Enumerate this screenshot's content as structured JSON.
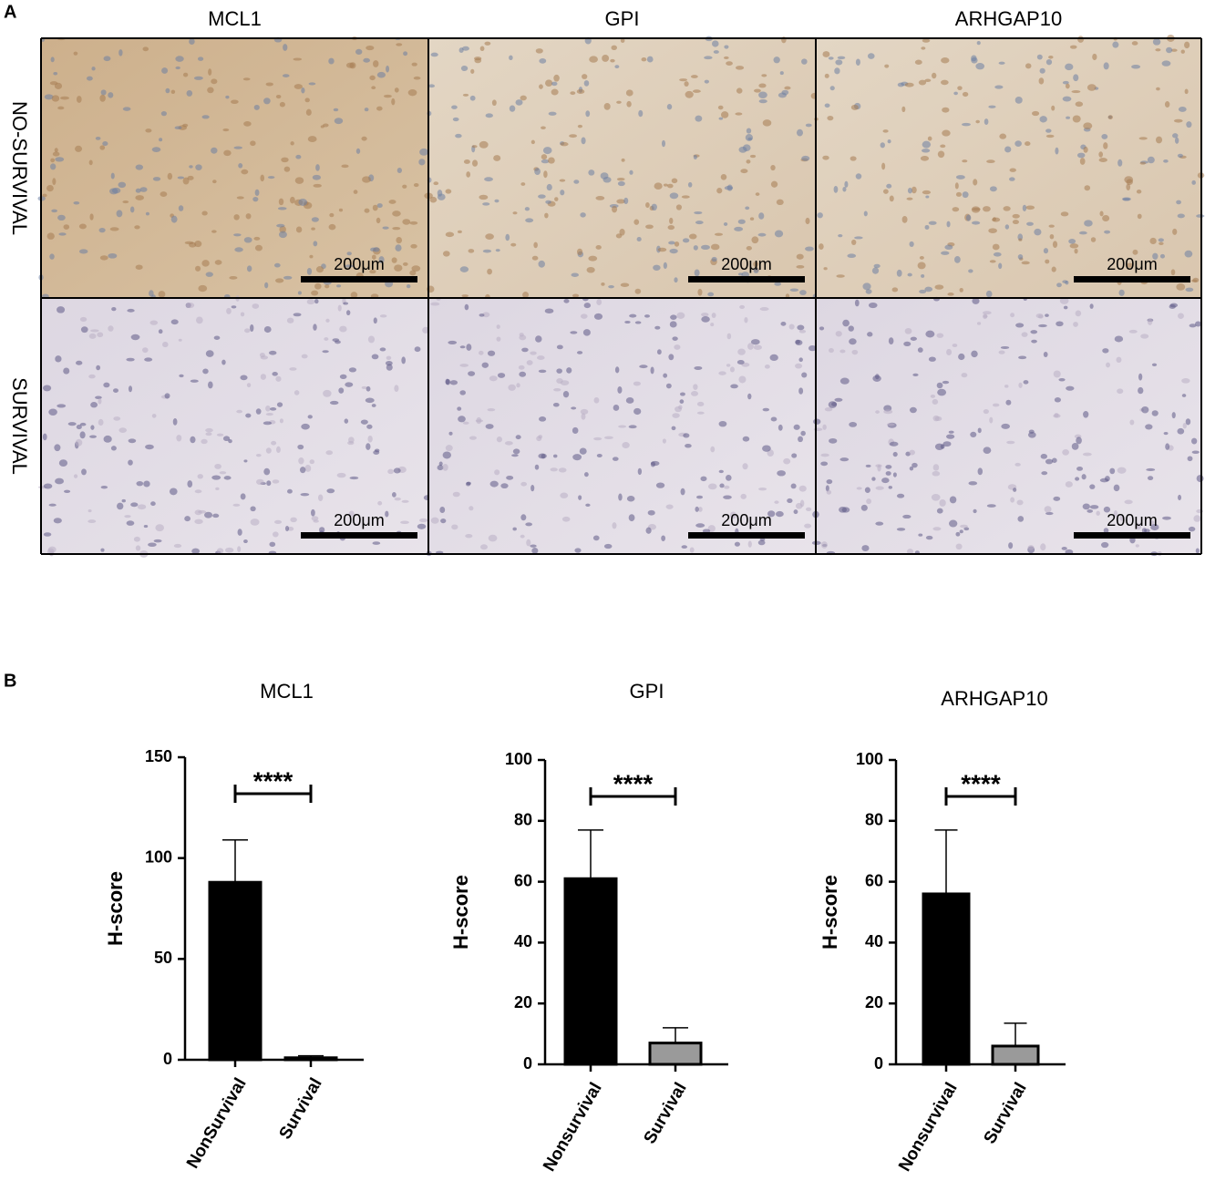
{
  "panel_a": {
    "label": "A",
    "columns": [
      "MCL1",
      "GPI",
      "ARHGAP10"
    ],
    "rows": [
      "NO-SURVIVAL",
      "SURVIVAL"
    ],
    "scale_bars": [
      [
        "200μm",
        "200μm",
        "200μm"
      ],
      [
        "200μm",
        "200μm",
        "200μm"
      ]
    ]
  },
  "panel_b": {
    "label": "B"
  },
  "chart_data": [
    {
      "type": "bar",
      "title": "MCL1",
      "y_label": "H-score",
      "categories": [
        "NonSurvival",
        "Survival"
      ],
      "values": [
        88,
        1
      ],
      "errors": [
        21,
        1
      ],
      "colors": [
        "#000000",
        "#9a9a9a"
      ],
      "ylim": [
        0,
        150
      ],
      "yticks": [
        0,
        50,
        100,
        150
      ],
      "annotation": "****"
    },
    {
      "type": "bar",
      "title": "GPI",
      "y_label": "H-score",
      "categories": [
        "Nonsurvival",
        "Survival"
      ],
      "values": [
        61,
        7
      ],
      "errors": [
        16,
        5
      ],
      "colors": [
        "#000000",
        "#9a9a9a"
      ],
      "ylim": [
        0,
        100
      ],
      "yticks": [
        0,
        20,
        40,
        60,
        80,
        100
      ],
      "annotation": "****"
    },
    {
      "type": "bar",
      "title": "ARHGAP10",
      "y_label": "H-score",
      "categories": [
        "Nonsurvival",
        "Survival"
      ],
      "values": [
        56,
        6
      ],
      "errors": [
        21,
        7.5
      ],
      "colors": [
        "#000000",
        "#9a9a9a"
      ],
      "ylim": [
        0,
        100
      ],
      "yticks": [
        0,
        20,
        40,
        60,
        80,
        100
      ],
      "annotation": "****"
    }
  ]
}
